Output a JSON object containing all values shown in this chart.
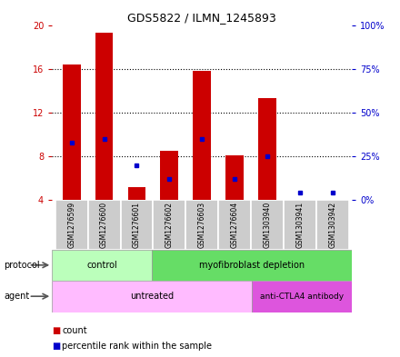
{
  "title": "GDS5822 / ILMN_1245893",
  "samples": [
    "GSM1276599",
    "GSM1276600",
    "GSM1276601",
    "GSM1276602",
    "GSM1276603",
    "GSM1276604",
    "GSM1303940",
    "GSM1303941",
    "GSM1303942"
  ],
  "count_values": [
    16.4,
    19.3,
    5.2,
    8.5,
    15.8,
    8.1,
    13.3,
    4.0,
    4.0
  ],
  "percentile_values": [
    33,
    35,
    20,
    12,
    35,
    12,
    25,
    4.0,
    4.0
  ],
  "ylim": [
    4,
    20
  ],
  "yticks_left": [
    4,
    8,
    12,
    16,
    20
  ],
  "yticks_right": [
    0,
    25,
    50,
    75,
    100
  ],
  "left_color": "#cc0000",
  "right_color": "#0000cc",
  "bar_color": "#cc0000",
  "dot_color": "#0000cc",
  "protocol_control_samples": 3,
  "protocol_myofib_samples": 6,
  "agent_untreated_samples": 6,
  "agent_anti_samples": 3,
  "protocol_labels": [
    "control",
    "myofibroblast depletion"
  ],
  "agent_labels": [
    "untreated",
    "anti-CTLA4 antibody"
  ],
  "protocol_colors": [
    "#bbffbb",
    "#66dd66"
  ],
  "agent_colors": [
    "#ffbbff",
    "#dd55dd"
  ],
  "legend_count": "count",
  "legend_percentile": "percentile rank within the sample",
  "sample_bg": "#cccccc",
  "bar_width": 0.55
}
